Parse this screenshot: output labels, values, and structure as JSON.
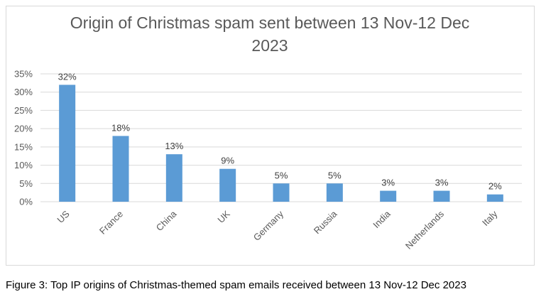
{
  "chart_data": {
    "type": "bar",
    "title_line1": "Origin of Christmas spam sent between 13 Nov-12 Dec",
    "title_line2": "2023",
    "categories": [
      "US",
      "France",
      "China",
      "UK",
      "Germany",
      "Russia",
      "India",
      "Netherlands",
      "Italy"
    ],
    "values": [
      32,
      18,
      13,
      9,
      5,
      5,
      3,
      3,
      2
    ],
    "data_labels": [
      "32%",
      "18%",
      "13%",
      "9%",
      "5%",
      "5%",
      "3%",
      "3%",
      "2%"
    ],
    "xlabel": "",
    "ylabel": "",
    "ylim": [
      0,
      35
    ],
    "yticks": [
      "0%",
      "5%",
      "10%",
      "15%",
      "20%",
      "25%",
      "30%",
      "35%"
    ],
    "grid": true,
    "bar_color": "#5b9bd5",
    "grid_color": "#d9d9d9"
  },
  "caption": "Figure 3: Top IP origins of Christmas-themed spam emails received between 13 Nov-12 Dec 2023"
}
